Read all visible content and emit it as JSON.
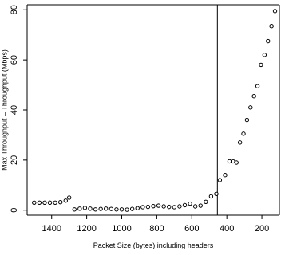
{
  "chart_data": {
    "type": "scatter",
    "title": "",
    "xlabel": "Packet Size (bytes) including headers",
    "ylabel": "Max Throughput – Throughput (Mbps)",
    "xlim": [
      1540,
      100
    ],
    "ylim": [
      -2,
      82
    ],
    "x_reversed": true,
    "xticks": [
      1400,
      1200,
      1000,
      800,
      600,
      400,
      200
    ],
    "xtick_labels": [
      "1400",
      "1200",
      "1000",
      "800",
      "600",
      "400",
      "200"
    ],
    "yticks": [
      0,
      20,
      40,
      60,
      80
    ],
    "ytick_labels": [
      "0",
      "20",
      "40",
      "60",
      "80"
    ],
    "grid": false,
    "vertical_line_x": 454,
    "series": [
      {
        "points": [
          [
            1500,
            3.0
          ],
          [
            1470,
            3.0
          ],
          [
            1440,
            3.0
          ],
          [
            1410,
            3.0
          ],
          [
            1380,
            3.0
          ],
          [
            1350,
            3.2
          ],
          [
            1320,
            3.8
          ],
          [
            1300,
            5.0
          ],
          [
            1270,
            0.3
          ],
          [
            1240,
            0.6
          ],
          [
            1210,
            0.9
          ],
          [
            1180,
            0.6
          ],
          [
            1150,
            0.3
          ],
          [
            1120,
            0.5
          ],
          [
            1090,
            0.6
          ],
          [
            1060,
            0.5
          ],
          [
            1030,
            0.3
          ],
          [
            1000,
            0.3
          ],
          [
            970,
            0.2
          ],
          [
            940,
            0.5
          ],
          [
            910,
            0.8
          ],
          [
            880,
            1.2
          ],
          [
            850,
            1.3
          ],
          [
            820,
            1.6
          ],
          [
            790,
            1.8
          ],
          [
            760,
            1.5
          ],
          [
            730,
            1.3
          ],
          [
            700,
            1.2
          ],
          [
            670,
            1.5
          ],
          [
            640,
            2.0
          ],
          [
            610,
            2.6
          ],
          [
            580,
            1.5
          ],
          [
            550,
            1.8
          ],
          [
            520,
            3.3
          ],
          [
            490,
            5.5
          ],
          [
            460,
            6.5
          ],
          [
            440,
            12.0
          ],
          [
            410,
            14.0
          ],
          [
            385,
            19.5
          ],
          [
            365,
            19.5
          ],
          [
            345,
            19.0
          ],
          [
            325,
            27.0
          ],
          [
            305,
            30.5
          ],
          [
            285,
            36.0
          ],
          [
            265,
            41.0
          ],
          [
            245,
            45.5
          ],
          [
            225,
            49.5
          ],
          [
            205,
            58.0
          ],
          [
            185,
            62.0
          ],
          [
            165,
            67.5
          ],
          [
            145,
            73.5
          ],
          [
            125,
            79.5
          ]
        ]
      }
    ]
  }
}
